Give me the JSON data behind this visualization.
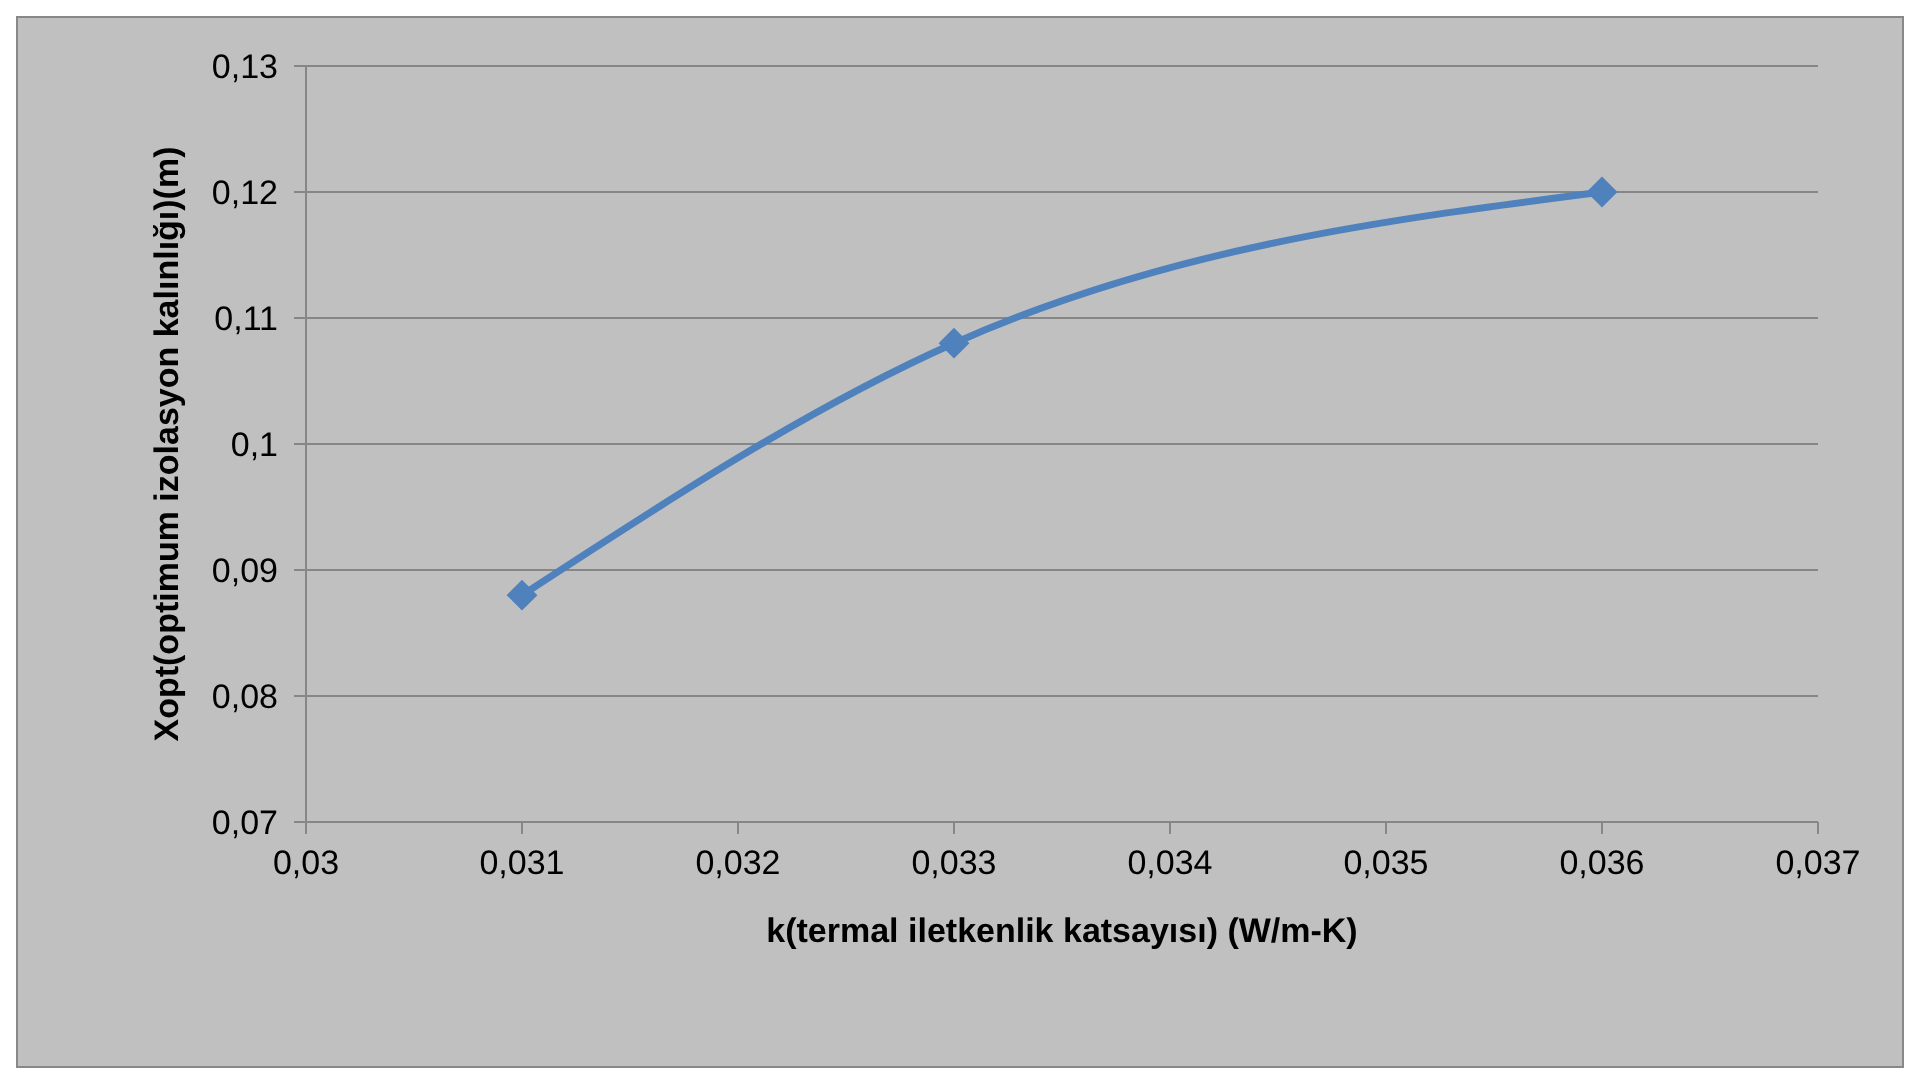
{
  "chart_data": {
    "type": "line",
    "xlabel": "k(termal iletkenlik katsayısı) (W/m-K)",
    "ylabel": "Xopt(optimum izolasyon kalınlığı)(m)",
    "x": [
      0.031,
      0.033,
      0.036
    ],
    "series": [
      {
        "color": "#4f81bd",
        "values": [
          0.088,
          0.108,
          0.12
        ]
      }
    ],
    "xlim": [
      0.03,
      0.037
    ],
    "xticks": [
      {
        "value": 0.03,
        "label": "0,03"
      },
      {
        "value": 0.031,
        "label": "0,031"
      },
      {
        "value": 0.032,
        "label": "0,032"
      },
      {
        "value": 0.033,
        "label": "0,033"
      },
      {
        "value": 0.034,
        "label": "0,034"
      },
      {
        "value": 0.035,
        "label": "0,035"
      },
      {
        "value": 0.036,
        "label": "0,036"
      },
      {
        "value": 0.037,
        "label": "0,037"
      }
    ],
    "ylim": [
      0.07,
      0.13
    ],
    "yticks": [
      {
        "value": 0.07,
        "label": "0,07"
      },
      {
        "value": 0.08,
        "label": "0,08"
      },
      {
        "value": 0.09,
        "label": "0,09"
      },
      {
        "value": 0.1,
        "label": "0,1"
      },
      {
        "value": 0.11,
        "label": "0,11"
      },
      {
        "value": 0.12,
        "label": "0,12"
      },
      {
        "value": 0.13,
        "label": "0,13"
      }
    ],
    "grid": "y",
    "marker": "diamond",
    "line_style": "solid",
    "legend": false
  }
}
